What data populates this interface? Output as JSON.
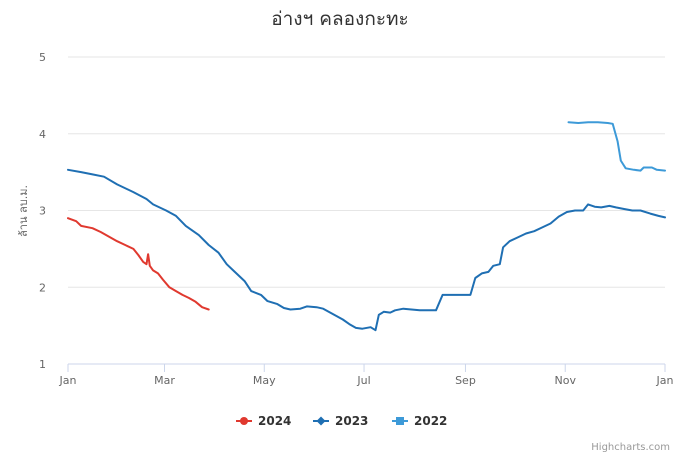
{
  "chart_data": {
    "type": "line",
    "title": "อ่างฯ คลองกะทะ",
    "ylabel": "ล้าน ลบ.ม.",
    "xlabel": "",
    "ylim": [
      1,
      5
    ],
    "yticks": [
      "1",
      "2",
      "3",
      "4",
      "5"
    ],
    "xticks": [
      {
        "label": "Jan",
        "day": 0
      },
      {
        "label": "Mar",
        "day": 59
      },
      {
        "label": "May",
        "day": 120
      },
      {
        "label": "Jul",
        "day": 181
      },
      {
        "label": "Sep",
        "day": 243
      },
      {
        "label": "Nov",
        "day": 304
      },
      {
        "label": "Jan",
        "day": 365
      }
    ],
    "grid": true,
    "legend_position": "bottom-center",
    "series": [
      {
        "name": "2024",
        "color": "#e0392f",
        "marker": "circle",
        "points": [
          [
            0,
            2.9
          ],
          [
            5,
            2.86
          ],
          [
            8,
            2.8
          ],
          [
            15,
            2.77
          ],
          [
            20,
            2.72
          ],
          [
            25,
            2.66
          ],
          [
            30,
            2.6
          ],
          [
            35,
            2.55
          ],
          [
            40,
            2.5
          ],
          [
            43,
            2.42
          ],
          [
            46,
            2.33
          ],
          [
            48,
            2.3
          ],
          [
            49,
            2.43
          ],
          [
            50,
            2.28
          ],
          [
            52,
            2.22
          ],
          [
            55,
            2.18
          ],
          [
            58,
            2.1
          ],
          [
            62,
            2.0
          ],
          [
            66,
            1.95
          ],
          [
            70,
            1.9
          ],
          [
            74,
            1.86
          ],
          [
            78,
            1.81
          ],
          [
            82,
            1.74
          ],
          [
            86,
            1.71
          ]
        ]
      },
      {
        "name": "2023",
        "color": "#1f6fb3",
        "marker": "diamond",
        "points": [
          [
            0,
            3.53
          ],
          [
            8,
            3.5
          ],
          [
            15,
            3.47
          ],
          [
            22,
            3.44
          ],
          [
            30,
            3.34
          ],
          [
            40,
            3.24
          ],
          [
            48,
            3.15
          ],
          [
            52,
            3.08
          ],
          [
            60,
            3.0
          ],
          [
            66,
            2.93
          ],
          [
            72,
            2.8
          ],
          [
            80,
            2.68
          ],
          [
            86,
            2.55
          ],
          [
            92,
            2.45
          ],
          [
            97,
            2.3
          ],
          [
            102,
            2.2
          ],
          [
            108,
            2.08
          ],
          [
            112,
            1.95
          ],
          [
            118,
            1.9
          ],
          [
            122,
            1.82
          ],
          [
            128,
            1.78
          ],
          [
            132,
            1.73
          ],
          [
            136,
            1.71
          ],
          [
            142,
            1.72
          ],
          [
            146,
            1.75
          ],
          [
            152,
            1.74
          ],
          [
            156,
            1.72
          ],
          [
            162,
            1.65
          ],
          [
            168,
            1.58
          ],
          [
            172,
            1.52
          ],
          [
            176,
            1.47
          ],
          [
            180,
            1.46
          ],
          [
            185,
            1.48
          ],
          [
            188,
            1.44
          ],
          [
            190,
            1.64
          ],
          [
            193,
            1.68
          ],
          [
            197,
            1.67
          ],
          [
            200,
            1.7
          ],
          [
            205,
            1.72
          ],
          [
            210,
            1.71
          ],
          [
            215,
            1.7
          ],
          [
            220,
            1.7
          ],
          [
            225,
            1.7
          ],
          [
            229,
            1.9
          ],
          [
            235,
            1.9
          ],
          [
            241,
            1.9
          ],
          [
            246,
            1.9
          ],
          [
            249,
            2.12
          ],
          [
            253,
            2.18
          ],
          [
            257,
            2.2
          ],
          [
            260,
            2.28
          ],
          [
            264,
            2.3
          ],
          [
            266,
            2.52
          ],
          [
            270,
            2.6
          ],
          [
            275,
            2.65
          ],
          [
            280,
            2.7
          ],
          [
            285,
            2.73
          ],
          [
            290,
            2.78
          ],
          [
            295,
            2.83
          ],
          [
            300,
            2.92
          ],
          [
            305,
            2.98
          ],
          [
            310,
            3.0
          ],
          [
            315,
            3.0
          ],
          [
            318,
            3.08
          ],
          [
            322,
            3.05
          ],
          [
            326,
            3.04
          ],
          [
            331,
            3.06
          ],
          [
            335,
            3.04
          ],
          [
            340,
            3.02
          ],
          [
            345,
            3.0
          ],
          [
            350,
            3.0
          ],
          [
            356,
            2.96
          ],
          [
            361,
            2.93
          ],
          [
            365,
            2.91
          ]
        ]
      },
      {
        "name": "2022",
        "color": "#3d9ad8",
        "marker": "square",
        "points": [
          [
            306,
            4.15
          ],
          [
            312,
            4.14
          ],
          [
            318,
            4.15
          ],
          [
            324,
            4.15
          ],
          [
            330,
            4.14
          ],
          [
            333,
            4.13
          ],
          [
            336,
            3.9
          ],
          [
            338,
            3.65
          ],
          [
            341,
            3.55
          ],
          [
            346,
            3.53
          ],
          [
            350,
            3.52
          ],
          [
            352,
            3.56
          ],
          [
            357,
            3.56
          ],
          [
            360,
            3.53
          ],
          [
            365,
            3.52
          ]
        ]
      }
    ]
  },
  "credit": "Highcharts.com"
}
